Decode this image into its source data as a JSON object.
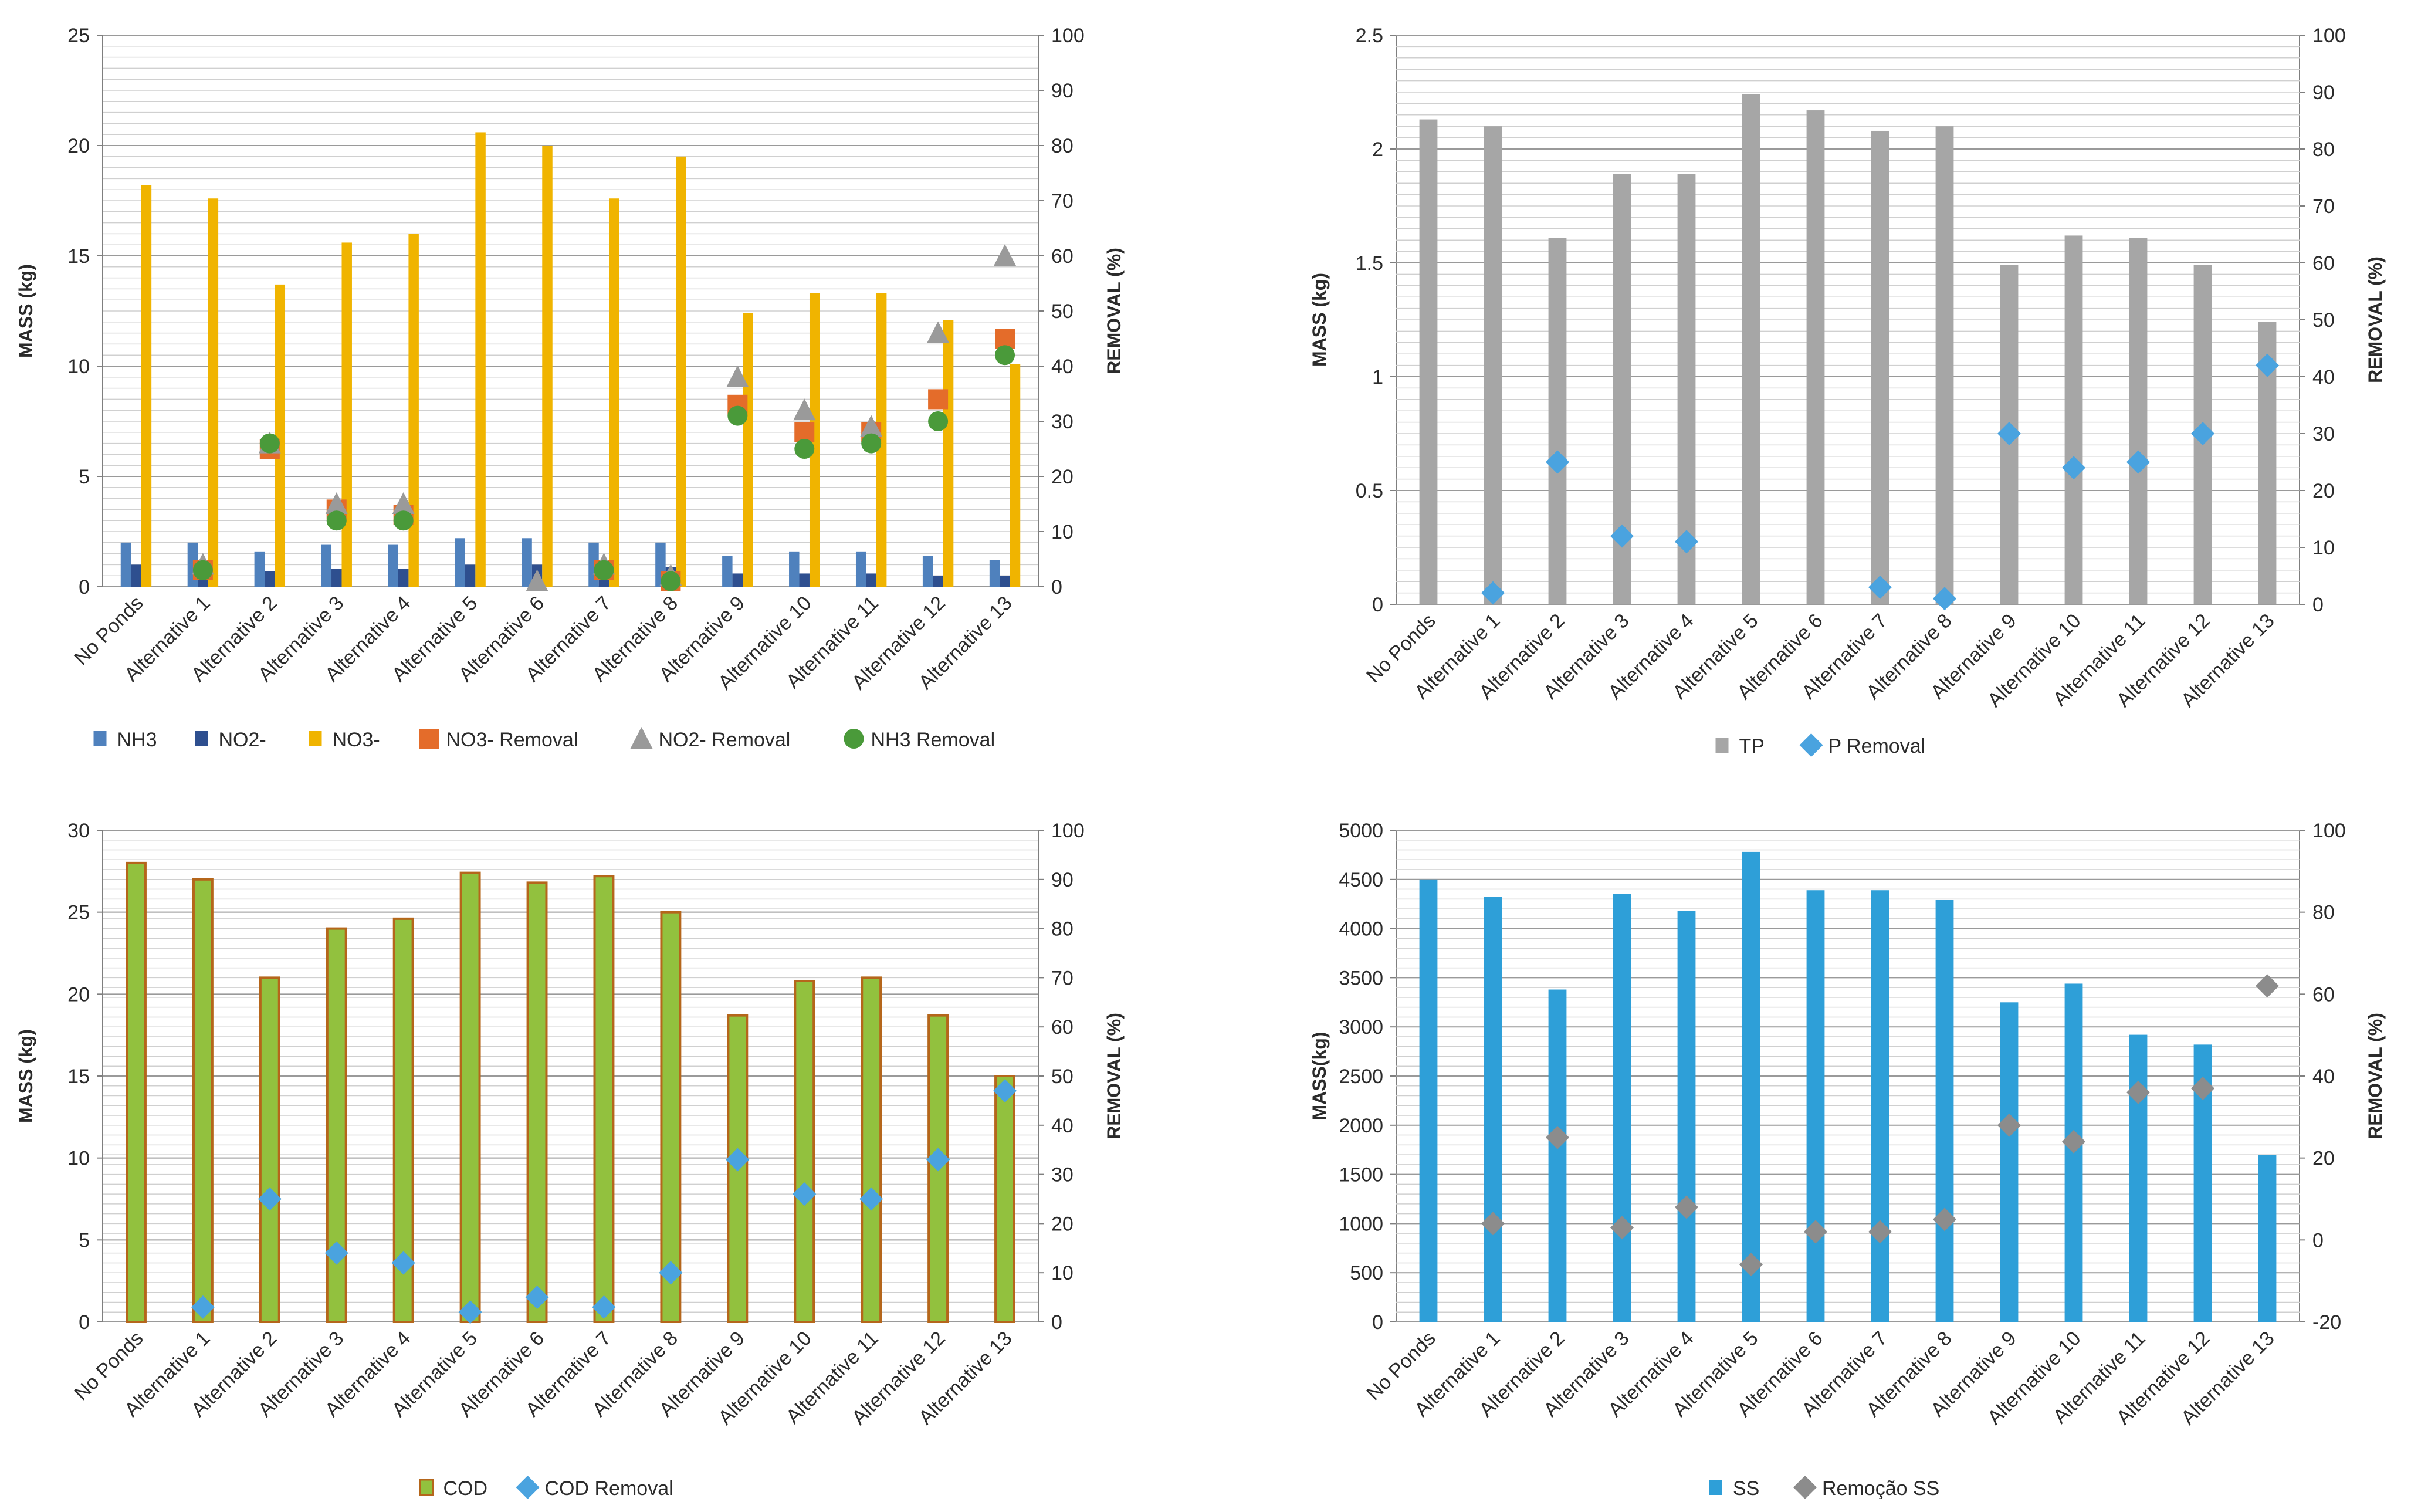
{
  "chart_data": [
    {
      "type": "bar",
      "title": "",
      "categories": [
        "No Ponds",
        "Alternative 1",
        "Alternative 2",
        "Alternative 3",
        "Alternative 4",
        "Alternative 5",
        "Alternative 6",
        "Alternative 7",
        "Alternative 8",
        "Alternative 9",
        "Alternative 10",
        "Alternative 11",
        "Alternative 12",
        "Alternative 13"
      ],
      "ylabel": "MASS (kg)",
      "y2label": "REMOVAL (%)",
      "ylim": [
        0,
        25
      ],
      "y2lim": [
        0,
        100
      ],
      "yticks": [
        0,
        5,
        10,
        15,
        20,
        25
      ],
      "y2ticks": [
        0,
        10,
        20,
        30,
        40,
        50,
        60,
        70,
        80,
        90,
        100
      ],
      "grid": true,
      "legend_position": "bottom",
      "series": [
        {
          "name": "NH3",
          "kind": "bar",
          "axis": "left",
          "color": "#4f81bd",
          "values": [
            2.0,
            2.0,
            1.6,
            1.9,
            1.9,
            2.2,
            2.2,
            2.0,
            2.0,
            1.4,
            1.6,
            1.6,
            1.4,
            1.2
          ]
        },
        {
          "name": "NO2-",
          "kind": "bar",
          "axis": "left",
          "color": "#2e4f8f",
          "values": [
            1.0,
            1.0,
            0.7,
            0.8,
            0.8,
            1.0,
            1.0,
            0.9,
            0.9,
            0.6,
            0.6,
            0.6,
            0.5,
            0.5
          ]
        },
        {
          "name": "NO3-",
          "kind": "bar",
          "axis": "left",
          "color": "#f0b400",
          "values": [
            18.2,
            17.6,
            13.7,
            15.6,
            16.0,
            20.6,
            20.0,
            17.6,
            19.5,
            12.4,
            13.3,
            13.3,
            12.1,
            10.1
          ]
        },
        {
          "name": "NO3- Removal",
          "kind": "marker",
          "marker": "square",
          "axis": "right",
          "color": "#e46c2a",
          "values": [
            null,
            3,
            25,
            14,
            13,
            null,
            null,
            3,
            1,
            33,
            28,
            28,
            34,
            45
          ]
        },
        {
          "name": "NO2- Removal",
          "kind": "marker",
          "marker": "triangle",
          "axis": "right",
          "color": "#9a9a9a",
          "values": [
            null,
            4,
            26,
            15,
            15,
            null,
            1,
            4,
            2,
            38,
            32,
            29,
            46,
            60
          ]
        },
        {
          "name": "NH3 Removal",
          "kind": "marker",
          "marker": "circle",
          "axis": "right",
          "color": "#4a9a3a",
          "values": [
            null,
            3,
            26,
            12,
            12,
            null,
            null,
            3,
            1,
            31,
            25,
            26,
            30,
            42
          ]
        }
      ]
    },
    {
      "type": "bar",
      "title": "",
      "categories": [
        "No Ponds",
        "Alternative 1",
        "Alternative 2",
        "Alternative 3",
        "Alternative 4",
        "Alternative 5",
        "Alternative 6",
        "Alternative 7",
        "Alternative 8",
        "Alternative 9",
        "Alternative 10",
        "Alternative 11",
        "Alternative 12",
        "Alternative 13"
      ],
      "ylabel": "MASS (kg)",
      "y2label": "REMOVAL (%)",
      "ylim": [
        0,
        2.5
      ],
      "y2lim": [
        0,
        100
      ],
      "yticks": [
        0,
        0.5,
        1,
        1.5,
        2,
        2.5
      ],
      "y2ticks": [
        0,
        10,
        20,
        30,
        40,
        50,
        60,
        70,
        80,
        90,
        100
      ],
      "grid": true,
      "legend_position": "bottom",
      "series": [
        {
          "name": "TP",
          "kind": "bar",
          "axis": "left",
          "color": "#a6a6a6",
          "values": [
            2.13,
            2.1,
            1.61,
            1.89,
            1.89,
            2.24,
            2.17,
            2.08,
            2.1,
            1.49,
            1.62,
            1.61,
            1.49,
            1.24
          ]
        },
        {
          "name": "P Removal",
          "kind": "marker",
          "marker": "diamond",
          "axis": "right",
          "color": "#4aa3df",
          "values": [
            null,
            2,
            25,
            12,
            11,
            null,
            null,
            3,
            1,
            30,
            24,
            25,
            30,
            42
          ]
        }
      ]
    },
    {
      "type": "bar",
      "title": "",
      "categories": [
        "No Ponds",
        "Alternative 1",
        "Alternative 2",
        "Alternative 3",
        "Alternative 4",
        "Alternative 5",
        "Alternative 6",
        "Alternative 7",
        "Alternative 8",
        "Alternative 9",
        "Alternative 10",
        "Alternative 11",
        "Alternative 12",
        "Alternative 13"
      ],
      "ylabel": "MASS (kg)",
      "y2label": "REMOVAL (%)",
      "ylim": [
        0,
        30
      ],
      "y2lim": [
        0,
        100
      ],
      "yticks": [
        0,
        5,
        10,
        15,
        20,
        25,
        30
      ],
      "y2ticks": [
        0,
        10,
        20,
        30,
        40,
        50,
        60,
        70,
        80,
        90,
        100
      ],
      "grid": true,
      "legend_position": "bottom",
      "series": [
        {
          "name": "COD",
          "kind": "bar",
          "axis": "left",
          "color": "#92c13e",
          "stroke": "#b5661b",
          "values": [
            28.0,
            27.0,
            21.0,
            24.0,
            24.6,
            27.4,
            26.8,
            27.2,
            25.0,
            18.7,
            20.8,
            21.0,
            18.7,
            15.0
          ]
        },
        {
          "name": "COD Removal",
          "kind": "marker",
          "marker": "diamond",
          "axis": "right",
          "color": "#4aa3df",
          "values": [
            null,
            3,
            25,
            14,
            12,
            2,
            5,
            3,
            10,
            33,
            26,
            25,
            33,
            47
          ]
        }
      ]
    },
    {
      "type": "bar",
      "title": "",
      "categories": [
        "No Ponds",
        "Alternative 1",
        "Alternative 2",
        "Alternative 3",
        "Alternative 4",
        "Alternative 5",
        "Alternative 6",
        "Alternative 7",
        "Alternative 8",
        "Alternative 9",
        "Alternative 10",
        "Alternative 11",
        "Alternative 12",
        "Alternative 13"
      ],
      "ylabel": "MASS(kg)",
      "y2label": "REMOVAL (%)",
      "ylim": [
        0,
        5000
      ],
      "y2lim": [
        -20,
        100
      ],
      "yticks": [
        0,
        500,
        1000,
        1500,
        2000,
        2500,
        3000,
        3500,
        4000,
        4500,
        5000
      ],
      "y2ticks": [
        -20,
        0,
        20,
        40,
        60,
        80,
        100
      ],
      "grid": true,
      "legend_position": "bottom",
      "series": [
        {
          "name": "SS",
          "kind": "bar",
          "axis": "left",
          "color": "#2e9fd8",
          "values": [
            4500,
            4320,
            3380,
            4350,
            4180,
            4780,
            4390,
            4390,
            4290,
            3250,
            3440,
            2920,
            2820,
            1700
          ]
        },
        {
          "name": "Remoção SS",
          "kind": "marker",
          "marker": "diamond",
          "axis": "right",
          "color": "#8c8c8c",
          "values": [
            null,
            4,
            25,
            3,
            8,
            -6,
            2,
            2,
            5,
            28,
            24,
            36,
            37,
            62
          ]
        }
      ]
    }
  ]
}
